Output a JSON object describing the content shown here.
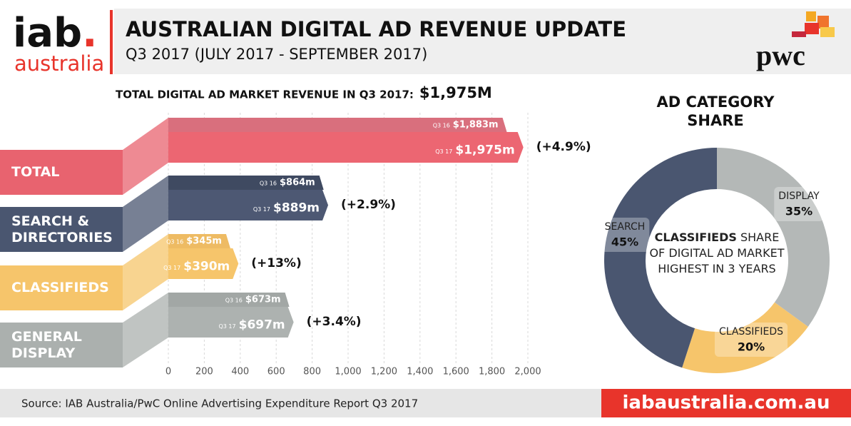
{
  "header": {
    "logo": "iab",
    "logo_dot": ".",
    "logo_sub": "australia",
    "title": "AUSTRALIAN DIGITAL AD REVENUE UPDATE",
    "subtitle": "Q3 2017 (JULY 2017 - SEPTEMBER 2017)",
    "brand": "pwc"
  },
  "chart_data": [
    {
      "type": "hbar",
      "title": "TOTAL DIGITAL AD MARKET REVENUE IN Q3 2017:",
      "title_value": "$1,975M",
      "categories": [
        "TOTAL",
        "SEARCH & DIRECTORIES",
        "CLASSIFIEDS",
        "GENERAL DISPLAY"
      ],
      "category_colors": [
        "#e8636f",
        "#4a5670",
        "#f6c56b",
        "#abb0ae"
      ],
      "series": [
        {
          "name": "Q3 16",
          "colors": [
            "#d96f7d",
            "#3f4a61",
            "#eebb63",
            "#a2a7a5"
          ],
          "values": [
            1883,
            864,
            345,
            673
          ],
          "value_labels": [
            "$1,883m",
            "$864m",
            "$345m",
            "$673m"
          ]
        },
        {
          "name": "Q3 17",
          "colors": [
            "#ec6672",
            "#4d5873",
            "#f6c56b",
            "#adb2b0"
          ],
          "values": [
            1975,
            889,
            390,
            697
          ],
          "value_labels": [
            "$1,975m",
            "$889m",
            "$390m",
            "$697m"
          ]
        }
      ],
      "changes": [
        "(+4.9%)",
        "(+2.9%)",
        "(+13%)",
        "(+3.4%)"
      ],
      "xlim": [
        0,
        2000
      ],
      "xticks": [
        0,
        200,
        400,
        600,
        800,
        {
          "value": 1000,
          "label": "1,000"
        },
        {
          "value": 1200,
          "label": "1,200"
        },
        {
          "value": 1400,
          "label": "1,400"
        },
        {
          "value": 1600,
          "label": "1,600"
        },
        {
          "value": 1800,
          "label": "1,800"
        },
        {
          "value": 2000,
          "label": "2,000"
        }
      ],
      "grid": true
    },
    {
      "type": "donut",
      "title": "AD CATEGORY SHARE",
      "categories": [
        "DISPLAY",
        "CLASSIFIEDS",
        "SEARCH"
      ],
      "values": [
        35,
        20,
        45
      ],
      "value_labels": [
        "35%",
        "20%",
        "45%"
      ],
      "colors": [
        "#b4b8b7",
        "#f6c56b",
        "#4a5670"
      ],
      "center_bold": "CLASSIFIEDS",
      "center_text": "SHARE OF DIGITAL AD MARKET HIGHEST IN 3 YEARS"
    }
  ],
  "footer": {
    "source": "Source: IAB Australia/PwC Online Advertising Expenditure Report Q3 2017",
    "url": "iabaustralia.com.au"
  }
}
